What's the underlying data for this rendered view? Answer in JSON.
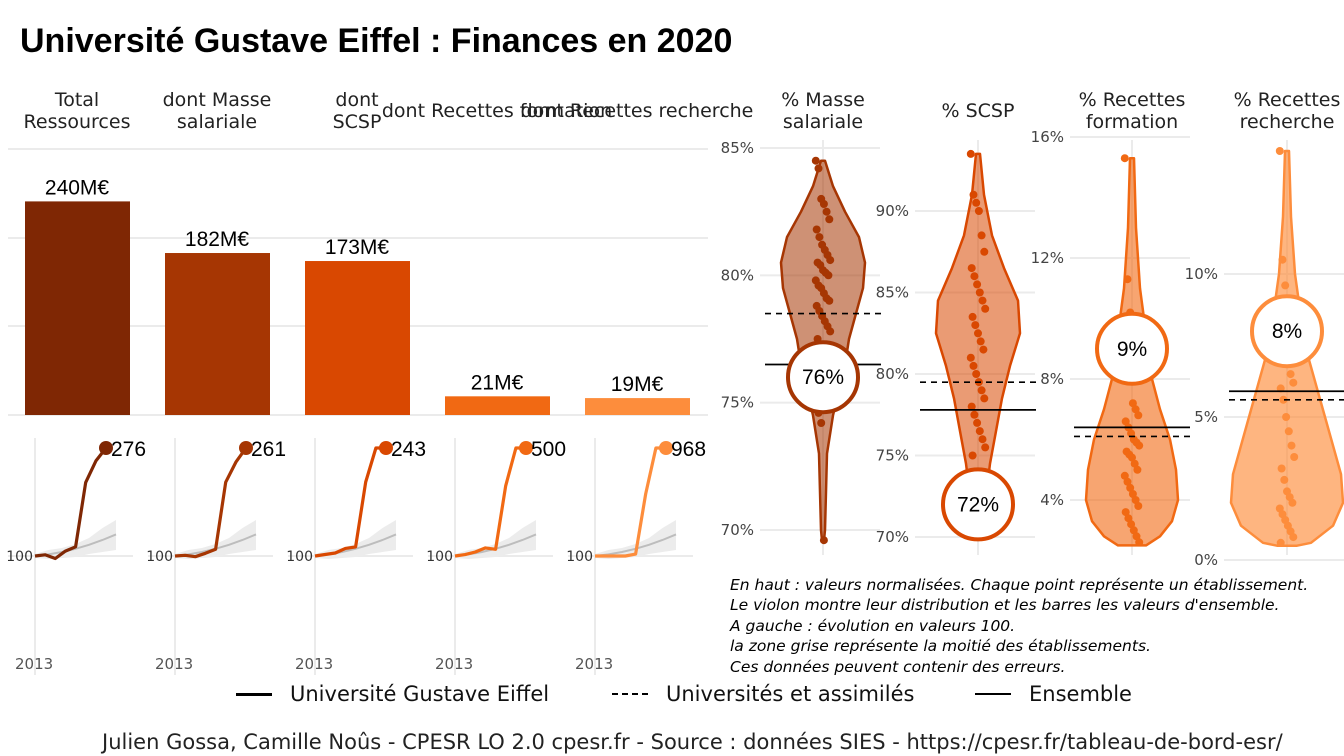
{
  "title": "Université Gustave Eiffel  :  Finances en 2020",
  "colors": {
    "total": "#7f2704",
    "masse": "#a63603",
    "scsp": "#d94801",
    "formation": "#f16913",
    "recherche": "#fd8d3c"
  },
  "chart_data": [
    {
      "id": "bars",
      "type": "bar",
      "categories": [
        "Total Ressources",
        "dont Masse salariale",
        "dont SCSP",
        "dont Recettes formation",
        "dont Recettes recherche"
      ],
      "values": [
        240,
        182,
        173,
        21,
        19
      ],
      "value_labels": [
        "240M€",
        "182M€",
        "173M€",
        "21M€",
        "19M€"
      ],
      "unit": "M€",
      "ylim": [
        0,
        290
      ],
      "grid": true
    },
    {
      "id": "evolution",
      "type": "line",
      "description_base": 100,
      "x_first_label": "2013",
      "base_label": "100",
      "panels": [
        {
          "name": "Total Ressources",
          "x": [
            2013,
            2014,
            2015,
            2016,
            2017,
            2018,
            2019,
            2020
          ],
          "values": [
            100,
            102,
            96,
            108,
            115,
            220,
            255,
            276
          ],
          "end_label": "276"
        },
        {
          "name": "dont Masse salariale",
          "x": [
            2013,
            2014,
            2015,
            2016,
            2017,
            2018,
            2019,
            2020
          ],
          "values": [
            100,
            101,
            99,
            104,
            110,
            210,
            240,
            261
          ],
          "end_label": "261"
        },
        {
          "name": "dont SCSP",
          "x": [
            2013,
            2014,
            2015,
            2016,
            2017,
            2018,
            2019,
            2020
          ],
          "values": [
            100,
            102,
            104,
            110,
            112,
            198,
            243,
            243
          ],
          "end_label": "243"
        },
        {
          "name": "dont Recettes formation",
          "x": [
            2013,
            2014,
            2015,
            2016,
            2017,
            2018,
            2019,
            2020
          ],
          "values": [
            100,
            105,
            115,
            130,
            125,
            360,
            500,
            500
          ],
          "end_label": "500"
        },
        {
          "name": "dont Recettes recherche",
          "x": [
            2013,
            2014,
            2015,
            2016,
            2017,
            2018,
            2019,
            2020
          ],
          "values": [
            100,
            100,
            100,
            100,
            115,
            600,
            968,
            968
          ],
          "end_label": "968"
        }
      ]
    },
    {
      "id": "violins",
      "type": "scatter",
      "panels": [
        {
          "title": "% Masse salariale",
          "ticks": [
            "85%",
            "80%",
            "75%",
            "70%"
          ],
          "tick_values": [
            85,
            80,
            75,
            70
          ],
          "ylim": [
            69.5,
            85.5
          ],
          "value": 76,
          "value_label": "76%",
          "universites": 78.5,
          "ensemble": 76.5,
          "points": [
            84.5,
            84.2,
            83.0,
            82.8,
            82.5,
            82.2,
            81.8,
            81.5,
            81.2,
            81.0,
            80.8,
            80.6,
            80.5,
            80.4,
            80.2,
            80.1,
            80.0,
            79.8,
            79.6,
            79.5,
            79.3,
            79.1,
            79.0,
            78.8,
            78.6,
            78.4,
            78.2,
            78.0,
            77.8,
            77.5,
            77.2,
            76.8,
            76.4,
            75.8,
            75.2,
            74.6,
            74.2,
            69.6
          ]
        },
        {
          "title": "% SCSP",
          "ticks": [
            "90%",
            "85%",
            "80%",
            "75%",
            "70%"
          ],
          "tick_values": [
            90,
            85,
            80,
            75,
            70
          ],
          "ylim": [
            69.5,
            94.5
          ],
          "value": 72,
          "value_label": "72%",
          "universites": 79.5,
          "ensemble": 77.8,
          "points": [
            93.5,
            91.0,
            90.5,
            90.0,
            88.5,
            87.5,
            86.5,
            86.0,
            85.5,
            85.0,
            84.5,
            84.0,
            83.5,
            83.0,
            82.5,
            82.0,
            81.5,
            81.0,
            80.5,
            80.0,
            79.5,
            79.0,
            78.5,
            78.0,
            77.5,
            77.0,
            76.5,
            76.0,
            75.5,
            75.0,
            74.0,
            73.5,
            73.0,
            72.0,
            71.0,
            70.0
          ]
        },
        {
          "title": "% Recettes formation",
          "ticks": [
            "16%",
            "12%",
            "8%",
            "4%"
          ],
          "tick_values": [
            16,
            12,
            8,
            4
          ],
          "ylim": [
            2.5,
            16.3
          ],
          "value": 9,
          "value_label": "9%",
          "universites": 6.1,
          "ensemble": 6.4,
          "points": [
            15.3,
            11.3,
            10.2,
            7.2,
            7.0,
            6.8,
            6.6,
            6.4,
            6.2,
            6.0,
            5.9,
            5.8,
            5.6,
            5.5,
            5.4,
            5.2,
            5.0,
            4.8,
            4.6,
            4.4,
            4.2,
            4.0,
            3.8,
            3.6,
            3.4,
            3.2,
            3.0,
            2.8,
            2.6
          ]
        },
        {
          "title": "% Recettes recherche",
          "ticks": [
            "10%",
            "5%",
            "0%"
          ],
          "tick_values": [
            10,
            5,
            0
          ],
          "ylim": [
            -0.1,
            14.6
          ],
          "value": 8,
          "value_label": "8%",
          "universites": 5.6,
          "ensemble": 5.9,
          "points": [
            14.3,
            10.5,
            9.6,
            7.8,
            6.5,
            6.2,
            6.0,
            5.6,
            5.0,
            4.5,
            4.0,
            3.6,
            3.2,
            2.8,
            2.4,
            2.2,
            2.0,
            1.8,
            1.6,
            1.4,
            1.2,
            1.0,
            0.8,
            0.6
          ]
        }
      ]
    }
  ],
  "notes": [
    "En haut : valeurs normalisées. Chaque point représente un établissement.",
    "Le violon montre leur distribution et les barres les valeurs d'ensemble.",
    "A gauche : évolution en valeurs 100.",
    "la zone grise représente la moitié des établissements.",
    "Ces données peuvent contenir des erreurs."
  ],
  "legend": {
    "etab": "Université Gustave Eiffel",
    "universites": "Universités et assimilés",
    "ensemble": "Ensemble"
  },
  "footer": "Julien Gossa, Camille Noûs - CPESR LO 2.0 cpesr.fr - Source : données SIES - https://cpesr.fr/tableau-de-bord-esr/"
}
